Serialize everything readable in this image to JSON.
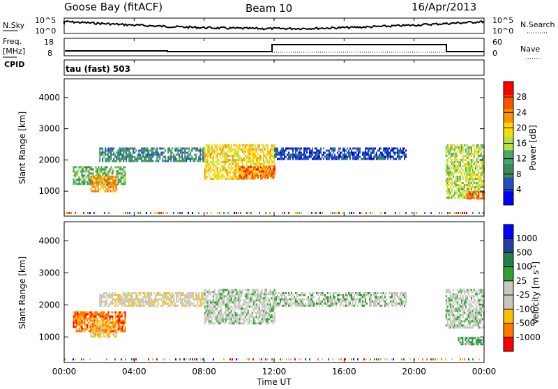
{
  "header": {
    "radar": "Goose Bay (fitACF)",
    "beam": "Beam 10",
    "date": "16/Apr/2013"
  },
  "noise_panel": {
    "left_label": "N.Sky",
    "left_ticks": [
      "10^5",
      "10^0"
    ],
    "right_ticks": [
      "10^5",
      "10^0"
    ],
    "right_label": "N.Search"
  },
  "freq_panel": {
    "left_label_top": "Freq.",
    "left_label_unit": "[MHz]",
    "left_ticks": [
      "18",
      "8"
    ],
    "right_ticks": [
      "60",
      "0"
    ],
    "right_label": "Nave",
    "cpid_label": "CPID"
  },
  "cpid_panel": {
    "text": "tau (fast) 503"
  },
  "colors": {
    "power_scale": [
      "#0000ff",
      "#2050c0",
      "#3a8a5a",
      "#4aa86a",
      "#b8e040",
      "#ffdc00",
      "#ff9000",
      "#ff5000",
      "#ff0000"
    ],
    "velocity_scale": [
      "#ff0000",
      "#ff7a00",
      "#ffc000",
      "#c8c8c0",
      "#c8c8c0",
      "#30a030",
      "#208050",
      "#2040a0",
      "#0000ff"
    ]
  },
  "chart_data": [
    {
      "type": "heatmap",
      "name": "power",
      "ylabel": "Slant Range [km]",
      "yticks": [
        "1000",
        "2000",
        "3000",
        "4000"
      ],
      "ylim": [
        200,
        4600
      ],
      "xlim": [
        0,
        24
      ],
      "colorbar": {
        "label": "Power [dB]",
        "ticks": [
          "4",
          "8",
          "12",
          "16",
          "20",
          "24",
          "28"
        ],
        "range": [
          0,
          32
        ]
      },
      "echo_regions": [
        {
          "t_start": 0.5,
          "t_end": 3.5,
          "r_min": 1200,
          "r_max": 1800,
          "level": 3
        },
        {
          "t_start": 1.5,
          "t_end": 3.0,
          "r_min": 1000,
          "r_max": 1500,
          "level": 6
        },
        {
          "t_start": 2.0,
          "t_end": 8.0,
          "r_min": 1950,
          "r_max": 2400,
          "level": 2
        },
        {
          "t_start": 8.0,
          "t_end": 12.0,
          "r_min": 1400,
          "r_max": 2500,
          "level": 5
        },
        {
          "t_start": 10.0,
          "t_end": 12.0,
          "r_min": 1400,
          "r_max": 1800,
          "level": 7
        },
        {
          "t_start": 12.0,
          "t_end": 19.5,
          "r_min": 2000,
          "r_max": 2400,
          "level": 1
        },
        {
          "t_start": 21.8,
          "t_end": 24.0,
          "r_min": 800,
          "r_max": 2500,
          "level": 4
        },
        {
          "t_start": 23.0,
          "t_end": 24.0,
          "r_min": 750,
          "r_max": 1000,
          "level": 7
        }
      ]
    },
    {
      "type": "heatmap",
      "name": "velocity",
      "ylabel": "Slant Range [km]",
      "yticks": [
        "1000",
        "2000",
        "3000",
        "4000"
      ],
      "ylim": [
        200,
        4600
      ],
      "xlim": [
        0,
        24
      ],
      "xlabel": "Time UT",
      "xticks": [
        "00:00",
        "04:00",
        "08:00",
        "12:00",
        "16:00",
        "20:00",
        "00:00"
      ],
      "colorbar": {
        "label": "Velocity [m s",
        "label_sup": "-1",
        "label_end": "]",
        "ticks": [
          "1000",
          "500",
          "100",
          "25",
          "-25",
          "-100",
          "-500",
          "-1000"
        ]
      },
      "echo_regions": [
        {
          "t_start": 0.5,
          "t_end": 3.5,
          "r_min": 1200,
          "r_max": 1800,
          "level": 1
        },
        {
          "t_start": 1.5,
          "t_end": 3.0,
          "r_min": 1000,
          "r_max": 1500,
          "level": 2
        },
        {
          "t_start": 2.0,
          "t_end": 8.0,
          "r_min": 1950,
          "r_max": 2400,
          "level": 3
        },
        {
          "t_start": 8.0,
          "t_end": 12.0,
          "r_min": 1400,
          "r_max": 2500,
          "level": 4
        },
        {
          "t_start": 12.0,
          "t_end": 19.5,
          "r_min": 2000,
          "r_max": 2400,
          "level": 4
        },
        {
          "t_start": 21.8,
          "t_end": 24.0,
          "r_min": 1300,
          "r_max": 2500,
          "level": 4
        },
        {
          "t_start": 22.5,
          "t_end": 24.0,
          "r_min": 750,
          "r_max": 1000,
          "level": 5
        }
      ]
    }
  ]
}
